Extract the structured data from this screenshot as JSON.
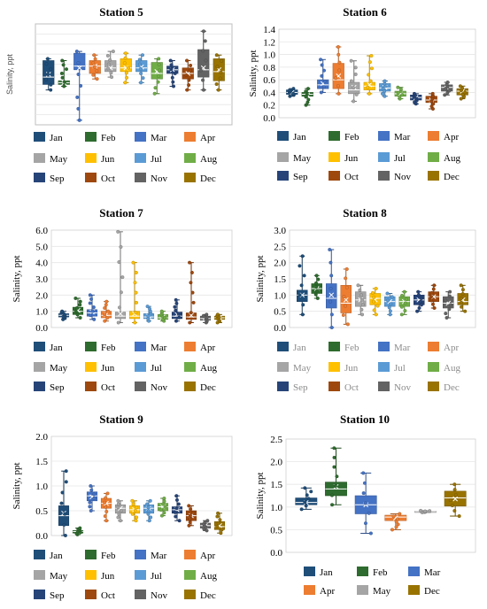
{
  "colors": {
    "Jan": "#1f4e79",
    "Feb": "#2e6b2e",
    "Mar": "#4472c4",
    "Apr": "#ed7d31",
    "May": "#a5a5a5",
    "Jun": "#ffc000",
    "Jul": "#5b9bd5",
    "Aug": "#70ad47",
    "Sep": "#264478",
    "Oct": "#9e480e",
    "Nov": "#636363",
    "Dec": "#997300"
  },
  "chart_data": [
    {
      "type": "box",
      "title": "Station 5",
      "ylabel": "Salinity, ppt",
      "ylim": null,
      "ticks": [],
      "months": [
        "Jan",
        "Feb",
        "Mar",
        "Apr",
        "May",
        "Jun",
        "Jul",
        "Aug",
        "Sep",
        "Oct",
        "Nov",
        "Dec"
      ],
      "legend_rows": [
        [
          "Jan",
          "Feb",
          "Mar",
          "Apr"
        ],
        [
          "May",
          "Jun",
          "Jul",
          "Aug"
        ],
        [
          "Sep",
          "Oct",
          "Nov",
          "Dec"
        ]
      ],
      "faded_legend": false,
      "boxes": [
        {
          "min": 0.38,
          "q1": 0.44,
          "med": 0.52,
          "q3": 0.7,
          "max": 0.72,
          "mean": 0.55
        },
        {
          "min": 0.42,
          "q1": 0.44,
          "med": 0.46,
          "q3": 0.48,
          "max": 0.7,
          "mean": 0.46
        },
        {
          "min": 0.05,
          "q1": 0.6,
          "med": 0.64,
          "q3": 0.78,
          "max": 0.8,
          "mean": 0.62
        },
        {
          "min": 0.5,
          "q1": 0.56,
          "med": 0.64,
          "q3": 0.7,
          "max": 0.76,
          "mean": 0.64
        },
        {
          "min": 0.52,
          "q1": 0.58,
          "med": 0.62,
          "q3": 0.7,
          "max": 0.8,
          "mean": 0.62
        },
        {
          "min": 0.46,
          "q1": 0.58,
          "med": 0.62,
          "q3": 0.72,
          "max": 0.78,
          "mean": 0.62
        },
        {
          "min": 0.46,
          "q1": 0.58,
          "med": 0.62,
          "q3": 0.7,
          "max": 0.76,
          "mean": 0.63
        },
        {
          "min": 0.34,
          "q1": 0.5,
          "med": 0.56,
          "q3": 0.68,
          "max": 0.72,
          "mean": 0.58
        },
        {
          "min": 0.42,
          "q1": 0.56,
          "med": 0.6,
          "q3": 0.64,
          "max": 0.7,
          "mean": 0.6
        },
        {
          "min": 0.38,
          "q1": 0.5,
          "med": 0.56,
          "q3": 0.62,
          "max": 0.7,
          "mean": 0.56
        },
        {
          "min": 0.38,
          "q1": 0.52,
          "med": 0.6,
          "q3": 0.82,
          "max": 1.02,
          "mean": 0.62
        },
        {
          "min": 0.38,
          "q1": 0.48,
          "med": 0.58,
          "q3": 0.72,
          "max": 0.76,
          "mean": 0.6
        }
      ]
    },
    {
      "type": "box",
      "title": "Station 6",
      "ylabel": "Salinity, ppt",
      "ylim": [
        0,
        1.4
      ],
      "ticks": [
        "0.0",
        "0.2",
        "0.4",
        "0.6",
        "0.8",
        "1.0",
        "1.2",
        "1.4"
      ],
      "months": [
        "Jan",
        "Feb",
        "Mar",
        "Apr",
        "May",
        "Jun",
        "Jul",
        "Aug",
        "Sep",
        "Oct",
        "Nov",
        "Dec"
      ],
      "legend_rows": [
        [
          "Jan",
          "Feb",
          "Mar",
          "Apr"
        ],
        [
          "May",
          "Jun",
          "Jul",
          "Aug"
        ],
        [
          "Sep",
          "Oct",
          "Nov",
          "Dec"
        ]
      ],
      "faded_legend": false,
      "boxes": [
        {
          "min": 0.34,
          "q1": 0.37,
          "med": 0.4,
          "q3": 0.44,
          "max": 0.46,
          "mean": 0.4
        },
        {
          "min": 0.2,
          "q1": 0.34,
          "med": 0.37,
          "q3": 0.4,
          "max": 0.46,
          "mean": 0.36
        },
        {
          "min": 0.4,
          "q1": 0.46,
          "med": 0.52,
          "q3": 0.6,
          "max": 0.92,
          "mean": 0.54
        },
        {
          "min": 0.38,
          "q1": 0.46,
          "med": 0.6,
          "q3": 0.86,
          "max": 1.12,
          "mean": 0.66
        },
        {
          "min": 0.26,
          "q1": 0.38,
          "med": 0.44,
          "q3": 0.56,
          "max": 0.9,
          "mean": 0.48
        },
        {
          "min": 0.38,
          "q1": 0.44,
          "med": 0.5,
          "q3": 0.56,
          "max": 0.98,
          "mean": 0.52
        },
        {
          "min": 0.34,
          "q1": 0.42,
          "med": 0.47,
          "q3": 0.54,
          "max": 0.58,
          "mean": 0.48
        },
        {
          "min": 0.3,
          "q1": 0.34,
          "med": 0.38,
          "q3": 0.42,
          "max": 0.48,
          "mean": 0.38
        },
        {
          "min": 0.22,
          "q1": 0.28,
          "med": 0.32,
          "q3": 0.36,
          "max": 0.38,
          "mean": 0.32
        },
        {
          "min": 0.14,
          "q1": 0.24,
          "med": 0.28,
          "q3": 0.34,
          "max": 0.38,
          "mean": 0.28
        },
        {
          "min": 0.36,
          "q1": 0.42,
          "med": 0.48,
          "q3": 0.52,
          "max": 0.56,
          "mean": 0.47
        },
        {
          "min": 0.3,
          "q1": 0.36,
          "med": 0.42,
          "q3": 0.46,
          "max": 0.5,
          "mean": 0.42
        }
      ]
    },
    {
      "type": "box",
      "title": "Station 7",
      "ylabel": "Salinity, ppt",
      "ylim": [
        0,
        6
      ],
      "ticks": [
        "0.0",
        "1.0",
        "2.0",
        "3.0",
        "4.0",
        "5.0",
        "6.0"
      ],
      "months": [
        "Jan",
        "Feb",
        "Mar",
        "Apr",
        "May",
        "Jun",
        "Jul",
        "Aug",
        "Sep",
        "Oct",
        "Nov",
        "Dec"
      ],
      "legend_rows": [
        [
          "Jan",
          "Feb",
          "Mar",
          "Apr"
        ],
        [
          "May",
          "Jun",
          "Jul",
          "Aug"
        ],
        [
          "Sep",
          "Oct",
          "Nov",
          "Dec"
        ]
      ],
      "faded_legend": false,
      "boxes": [
        {
          "min": 0.5,
          "q1": 0.65,
          "med": 0.75,
          "q3": 0.85,
          "max": 1.0,
          "mean": 0.75
        },
        {
          "min": 0.6,
          "q1": 0.8,
          "med": 1.0,
          "q3": 1.25,
          "max": 1.8,
          "mean": 1.05
        },
        {
          "min": 0.5,
          "q1": 0.7,
          "med": 0.9,
          "q3": 1.1,
          "max": 2.0,
          "mean": 0.95
        },
        {
          "min": 0.4,
          "q1": 0.6,
          "med": 0.75,
          "q3": 1.0,
          "max": 1.6,
          "mean": 0.8
        },
        {
          "min": 0.3,
          "q1": 0.55,
          "med": 0.7,
          "q3": 0.95,
          "max": 5.9,
          "mean": 0.85
        },
        {
          "min": 0.3,
          "q1": 0.55,
          "med": 0.7,
          "q3": 1.0,
          "max": 4.0,
          "mean": 0.85
        },
        {
          "min": 0.4,
          "q1": 0.55,
          "med": 0.65,
          "q3": 0.85,
          "max": 1.3,
          "mean": 0.7
        },
        {
          "min": 0.4,
          "q1": 0.5,
          "med": 0.6,
          "q3": 0.8,
          "max": 1.0,
          "mean": 0.65
        },
        {
          "min": 0.4,
          "q1": 0.55,
          "med": 0.7,
          "q3": 0.95,
          "max": 1.7,
          "mean": 0.8
        },
        {
          "min": 0.3,
          "q1": 0.5,
          "med": 0.65,
          "q3": 0.9,
          "max": 4.0,
          "mean": 0.75
        },
        {
          "min": 0.3,
          "q1": 0.45,
          "med": 0.55,
          "q3": 0.7,
          "max": 0.8,
          "mean": 0.6
        },
        {
          "min": 0.3,
          "q1": 0.5,
          "med": 0.6,
          "q3": 0.7,
          "max": 0.8,
          "mean": 0.6
        }
      ]
    },
    {
      "type": "box",
      "title": "Station 8",
      "ylabel": "Salinity, ppt",
      "ylim": [
        0,
        3
      ],
      "ticks": [
        "0.0",
        "0.5",
        "1.0",
        "1.5",
        "2.0",
        "2.5",
        "3.0"
      ],
      "months": [
        "Jan",
        "Feb",
        "Mar",
        "Apr",
        "May",
        "Jun",
        "Jul",
        "Aug",
        "Sep",
        "Oct",
        "Nov",
        "Dec"
      ],
      "legend_rows": [
        [
          "Jan",
          "Feb",
          "Mar",
          "Apr"
        ],
        [
          "May",
          "Jun",
          "Jul",
          "Aug"
        ],
        [
          "Sep",
          "Oct",
          "Nov",
          "Dec"
        ]
      ],
      "faded_legend": true,
      "boxes": [
        {
          "min": 0.4,
          "q1": 0.8,
          "med": 1.0,
          "q3": 1.15,
          "max": 2.2,
          "mean": 1.0
        },
        {
          "min": 0.9,
          "q1": 1.05,
          "med": 1.2,
          "q3": 1.35,
          "max": 1.6,
          "mean": 1.2
        },
        {
          "min": 0.0,
          "q1": 0.6,
          "med": 0.9,
          "q3": 1.35,
          "max": 2.4,
          "mean": 1.0
        },
        {
          "min": 0.1,
          "q1": 0.45,
          "med": 0.75,
          "q3": 1.3,
          "max": 1.8,
          "mean": 0.85
        },
        {
          "min": 0.4,
          "q1": 0.65,
          "med": 0.85,
          "q3": 1.1,
          "max": 1.3,
          "mean": 0.85
        },
        {
          "min": 0.4,
          "q1": 0.7,
          "med": 0.9,
          "q3": 1.05,
          "max": 1.2,
          "mean": 0.85
        },
        {
          "min": 0.4,
          "q1": 0.65,
          "med": 0.8,
          "q3": 0.95,
          "max": 1.05,
          "mean": 0.8
        },
        {
          "min": 0.4,
          "q1": 0.65,
          "med": 0.8,
          "q3": 0.95,
          "max": 1.1,
          "mean": 0.8
        },
        {
          "min": 0.5,
          "q1": 0.7,
          "med": 0.85,
          "q3": 1.0,
          "max": 1.1,
          "mean": 0.85
        },
        {
          "min": 0.6,
          "q1": 0.8,
          "med": 0.95,
          "q3": 1.1,
          "max": 1.3,
          "mean": 0.95
        },
        {
          "min": 0.3,
          "q1": 0.6,
          "med": 0.75,
          "q3": 0.95,
          "max": 1.1,
          "mean": 0.75
        },
        {
          "min": 0.5,
          "q1": 0.7,
          "med": 0.8,
          "q3": 1.05,
          "max": 1.3,
          "mean": 0.85
        }
      ]
    },
    {
      "type": "box",
      "title": "Station 9",
      "ylabel": "Salinity, ppt",
      "ylim": [
        0,
        2
      ],
      "ticks": [
        "0.0",
        "0.5",
        "1.0",
        "1.5",
        "2.0"
      ],
      "months": [
        "Jan",
        "Feb",
        "Mar",
        "Apr",
        "May",
        "Jun",
        "Jul",
        "Aug",
        "Sep",
        "Oct",
        "Nov",
        "Dec"
      ],
      "legend_rows": [
        [
          "Jan",
          "Feb",
          "Mar",
          "Apr"
        ],
        [
          "May",
          "Jun",
          "Jul",
          "Aug"
        ],
        [
          "Sep",
          "Oct",
          "Nov",
          "Dec"
        ]
      ],
      "faded_legend": false,
      "boxes": [
        {
          "min": 0.0,
          "q1": 0.2,
          "med": 0.4,
          "q3": 0.6,
          "max": 1.3,
          "mean": 0.45
        },
        {
          "min": 0.02,
          "q1": 0.05,
          "med": 0.08,
          "q3": 0.1,
          "max": 0.15,
          "mean": 0.08
        },
        {
          "min": 0.5,
          "q1": 0.7,
          "med": 0.8,
          "q3": 0.88,
          "max": 1.0,
          "mean": 0.78
        },
        {
          "min": 0.3,
          "q1": 0.55,
          "med": 0.65,
          "q3": 0.75,
          "max": 0.85,
          "mean": 0.65
        },
        {
          "min": 0.3,
          "q1": 0.45,
          "med": 0.55,
          "q3": 0.62,
          "max": 0.7,
          "mean": 0.55
        },
        {
          "min": 0.3,
          "q1": 0.45,
          "med": 0.52,
          "q3": 0.6,
          "max": 0.7,
          "mean": 0.52
        },
        {
          "min": 0.3,
          "q1": 0.45,
          "med": 0.55,
          "q3": 0.62,
          "max": 0.7,
          "mean": 0.55
        },
        {
          "min": 0.4,
          "q1": 0.5,
          "med": 0.58,
          "q3": 0.65,
          "max": 0.75,
          "mean": 0.58
        },
        {
          "min": 0.3,
          "q1": 0.45,
          "med": 0.52,
          "q3": 0.58,
          "max": 0.8,
          "mean": 0.52
        },
        {
          "min": 0.2,
          "q1": 0.3,
          "med": 0.4,
          "q3": 0.5,
          "max": 0.6,
          "mean": 0.4
        },
        {
          "min": 0.1,
          "q1": 0.15,
          "med": 0.2,
          "q3": 0.25,
          "max": 0.3,
          "mean": 0.2
        },
        {
          "min": 0.05,
          "q1": 0.12,
          "med": 0.18,
          "q3": 0.28,
          "max": 0.45,
          "mean": 0.2
        }
      ]
    },
    {
      "type": "box",
      "title": "Station 10",
      "ylabel": "Salinity, ppt",
      "ylim": [
        0,
        2.5
      ],
      "ticks": [
        "0.0",
        "0.5",
        "1.0",
        "1.5",
        "2.0",
        "2.5"
      ],
      "months": [
        "Jan",
        "Feb",
        "Mar",
        "Apr",
        "May",
        "Dec"
      ],
      "legend_rows": [
        [
          "Jan",
          "Feb",
          "Mar"
        ],
        [
          "Apr",
          "May",
          "Dec"
        ]
      ],
      "faded_legend": false,
      "boxes": [
        {
          "min": 0.95,
          "q1": 1.05,
          "med": 1.1,
          "q3": 1.2,
          "max": 1.42,
          "mean": 1.1
        },
        {
          "min": 1.05,
          "q1": 1.25,
          "med": 1.4,
          "q3": 1.55,
          "max": 2.3,
          "mean": 1.45
        },
        {
          "min": 0.42,
          "q1": 0.85,
          "med": 1.05,
          "q3": 1.25,
          "max": 1.75,
          "mean": 1.05
        },
        {
          "min": 0.5,
          "q1": 0.7,
          "med": 0.78,
          "q3": 0.82,
          "max": 0.85,
          "mean": 0.76
        },
        {
          "min": 0.88,
          "q1": 0.89,
          "med": 0.9,
          "q3": 0.91,
          "max": 0.92,
          "mean": 0.9
        },
        {
          "min": 0.8,
          "q1": 1.02,
          "med": 1.2,
          "q3": 1.35,
          "max": 1.5,
          "mean": 1.18
        }
      ]
    }
  ]
}
